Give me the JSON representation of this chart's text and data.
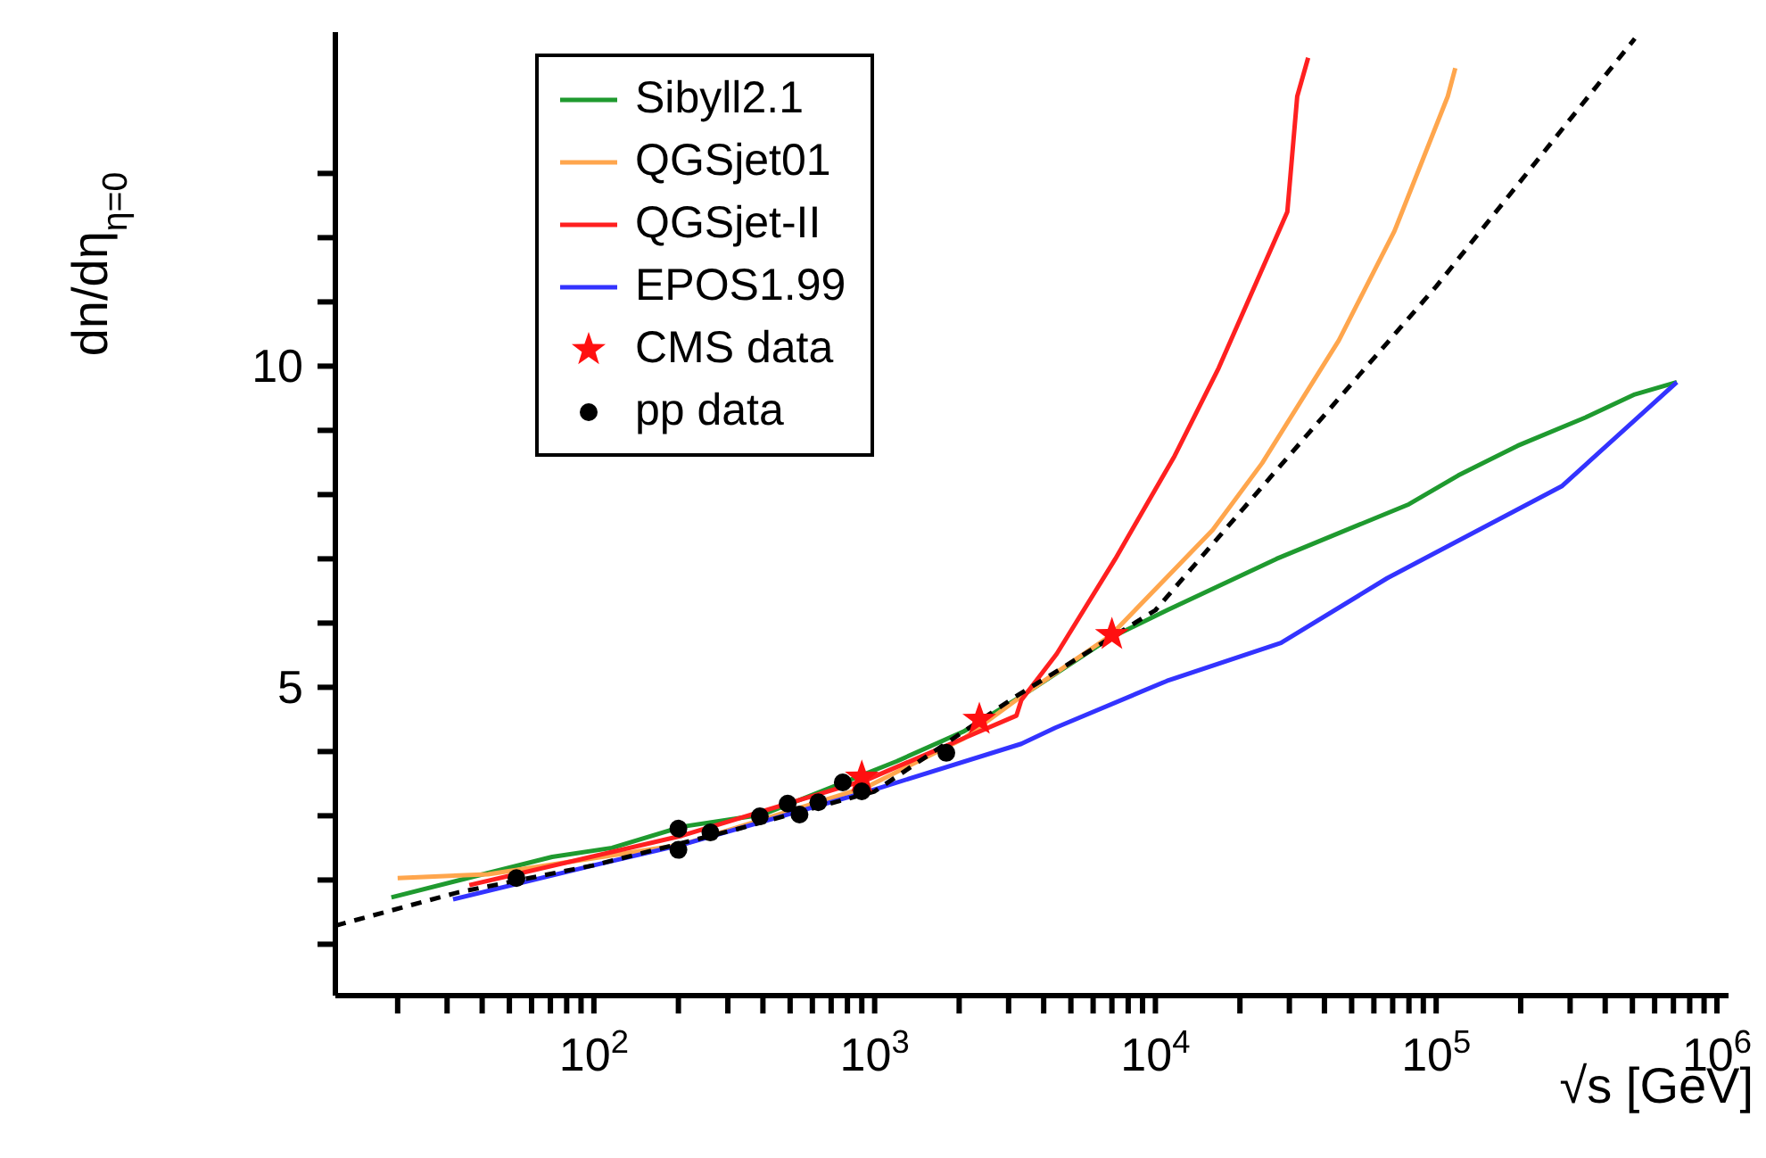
{
  "chart_data": {
    "type": "line",
    "ylabel": "dn/dη$_{η=0}$",
    "xlabel": "√s [GeV]",
    "log": "x",
    "grid": false,
    "legend": "top left",
    "xlim": [
      12,
      1100000
    ],
    "xticks": [
      {
        "value": 20,
        "label": null
      },
      {
        "value": 30,
        "label": null
      },
      {
        "value": 40,
        "label": null
      },
      {
        "value": 50,
        "label": null
      },
      {
        "value": 60,
        "label": null
      },
      {
        "value": 70,
        "label": null
      },
      {
        "value": 80,
        "label": null
      },
      {
        "value": 90,
        "label": null
      },
      {
        "value": 100,
        "label": "10$^{2}$"
      },
      {
        "value": 200,
        "label": null
      },
      {
        "value": 300,
        "label": null
      },
      {
        "value": 400,
        "label": null
      },
      {
        "value": 500,
        "label": null
      },
      {
        "value": 600,
        "label": null
      },
      {
        "value": 700,
        "label": null
      },
      {
        "value": 800,
        "label": null
      },
      {
        "value": 900,
        "label": null
      },
      {
        "value": 1000,
        "label": "10$^{3}$"
      },
      {
        "value": 2000,
        "label": null
      },
      {
        "value": 3000,
        "label": null
      },
      {
        "value": 4000,
        "label": null
      },
      {
        "value": 5000,
        "label": null
      },
      {
        "value": 6000,
        "label": null
      },
      {
        "value": 7000,
        "label": null
      },
      {
        "value": 8000,
        "label": null
      },
      {
        "value": 9000,
        "label": null
      },
      {
        "value": 10000,
        "label": "10$^{4}$"
      },
      {
        "value": 20000,
        "label": null
      },
      {
        "value": 30000,
        "label": null
      },
      {
        "value": 40000,
        "label": null
      },
      {
        "value": 50000,
        "label": null
      },
      {
        "value": 60000,
        "label": null
      },
      {
        "value": 70000,
        "label": null
      },
      {
        "value": 80000,
        "label": null
      },
      {
        "value": 90000,
        "label": null
      },
      {
        "value": 100000,
        "label": "10$^{5}$"
      },
      {
        "value": 200000,
        "label": null
      },
      {
        "value": 300000,
        "label": null
      },
      {
        "value": 400000,
        "label": null
      },
      {
        "value": 500000,
        "label": null
      },
      {
        "value": 600000,
        "label": null
      },
      {
        "value": 700000,
        "label": null
      },
      {
        "value": 800000,
        "label": null
      },
      {
        "value": 900000,
        "label": null
      },
      {
        "value": 1000000,
        "label": "10$^{6}$"
      }
    ],
    "ylim": [
      0.2,
      15.2
    ],
    "yticks": [
      {
        "value": 1,
        "label": null
      },
      {
        "value": 2,
        "label": null
      },
      {
        "value": 3,
        "label": null
      },
      {
        "value": 4,
        "label": null
      },
      5,
      {
        "value": 6,
        "label": null
      },
      {
        "value": 7,
        "label": null
      },
      {
        "value": 8,
        "label": null
      },
      {
        "value": 9,
        "label": null
      },
      10,
      {
        "value": 11,
        "label": null
      },
      {
        "value": 12,
        "label": null
      },
      {
        "value": 13,
        "label": null
      }
    ],
    "series": [
      {
        "name": "Sibyll2.1",
        "color": "#1f9a2f",
        "marker": "none",
        "line_style": "solid",
        "x": [
          19,
          71,
          116,
          206,
          400,
          1200,
          2070,
          3330,
          6900,
          11000,
          27000,
          80000,
          120000,
          195000,
          340000,
          510000,
          720000
        ],
        "values": [
          1.73,
          2.36,
          2.5,
          2.83,
          3.02,
          3.85,
          4.31,
          4.86,
          5.77,
          6.2,
          7.0,
          7.85,
          8.3,
          8.76,
          9.2,
          9.56,
          9.75
        ]
      },
      {
        "name": "QGSjet01",
        "color": "#ffa64d",
        "marker": "none",
        "line_style": "solid",
        "x": [
          20,
          42,
          206,
          950,
          2070,
          3330,
          6900,
          16000,
          24000,
          45000,
          71000,
          110000,
          117000
        ],
        "values": [
          2.03,
          2.09,
          2.55,
          3.46,
          4.2,
          4.86,
          5.8,
          7.45,
          8.49,
          10.4,
          12.1,
          14.2,
          14.64
        ]
      },
      {
        "name": "QGSjet-II",
        "color": "#ff2020",
        "marker": "none",
        "line_style": "solid",
        "x": [
          36,
          206,
          950,
          2300,
          3200,
          3330,
          4450,
          7200,
          11700,
          16800,
          29500,
          32000,
          35000
        ],
        "values": [
          1.92,
          2.69,
          3.57,
          4.29,
          4.56,
          4.8,
          5.52,
          7.0,
          8.6,
          9.97,
          12.4,
          14.2,
          14.8
        ]
      },
      {
        "name": "EPOS1.99",
        "color": "#3333ff",
        "marker": "none",
        "line_style": "solid",
        "x": [
          31.5,
          100,
          206,
          950,
          3330,
          4400,
          11000,
          28000,
          67000,
          280000,
          720000
        ],
        "values": [
          1.7,
          2.23,
          2.55,
          3.38,
          4.12,
          4.37,
          5.1,
          5.69,
          6.7,
          8.13,
          9.75
        ]
      },
      {
        "name": "CMS data",
        "type": "scatter",
        "color": "#ff1010",
        "marker": "star",
        "x": [
          900,
          2360,
          7000
        ],
        "values": [
          3.6,
          4.5,
          5.82
        ]
      },
      {
        "name": "pp data",
        "type": "scatter",
        "color": "#000000",
        "marker": "circle",
        "x": [
          53,
          200,
          200,
          260,
          390,
          490,
          540,
          630,
          770,
          900,
          1800
        ],
        "values": [
          2.03,
          2.8,
          2.47,
          2.74,
          2.99,
          3.19,
          3.02,
          3.21,
          3.52,
          3.38,
          3.98
        ]
      },
      {
        "color": "#000000",
        "marker": "none",
        "line_style": "dashed",
        "x": [
          12,
          33,
          100,
          316,
          1000,
          3162,
          7000,
          10000,
          27000,
          100000,
          510000
        ],
        "values": [
          1.29,
          1.81,
          2.23,
          2.78,
          3.38,
          4.85,
          5.78,
          6.2,
          8.38,
          11.24,
          15.1
        ]
      }
    ]
  }
}
